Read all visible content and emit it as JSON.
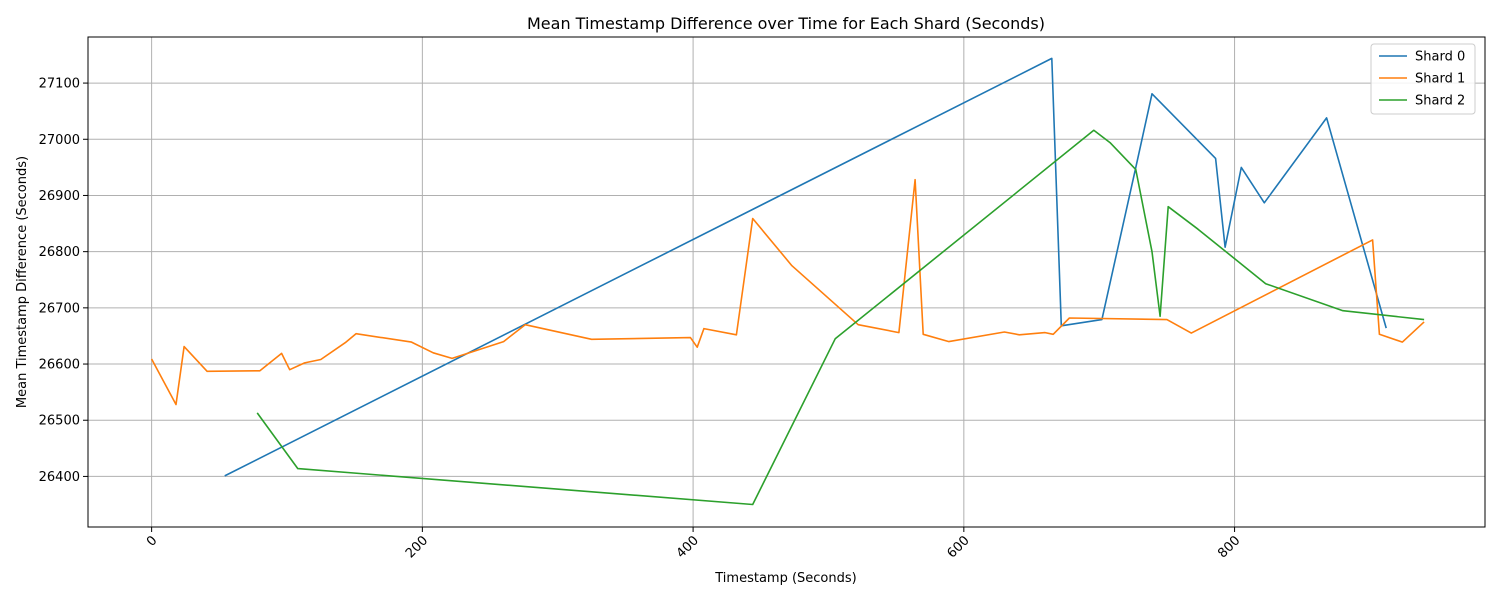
{
  "chart_data": {
    "type": "line",
    "title": "Mean Timestamp Difference over Time for Each Shard (Seconds)",
    "xlabel": "Timestamp (Seconds)",
    "ylabel": "Mean Timestamp Difference (Seconds)",
    "xlim": [
      -47,
      985
    ],
    "ylim": [
      26310,
      27182
    ],
    "xticks": [
      0,
      200,
      400,
      600,
      800
    ],
    "yticks": [
      26400,
      26500,
      26600,
      26700,
      26800,
      26900,
      27000,
      27100
    ],
    "grid": true,
    "legend_position": "top-right",
    "series": [
      {
        "name": "Shard 0",
        "color": "#1f77b4",
        "points": [
          [
            54,
            26401
          ],
          [
            665,
            27144
          ],
          [
            672,
            26668
          ],
          [
            702,
            26679
          ],
          [
            727,
            26950
          ],
          [
            739,
            27081
          ],
          [
            786,
            26966
          ],
          [
            793,
            26808
          ],
          [
            805,
            26950
          ],
          [
            822,
            26887
          ],
          [
            868,
            27038
          ],
          [
            912,
            26664
          ]
        ]
      },
      {
        "name": "Shard 1",
        "color": "#ff7f0e",
        "points": [
          [
            0,
            26609
          ],
          [
            18,
            26528
          ],
          [
            24,
            26631
          ],
          [
            41,
            26587
          ],
          [
            80,
            26588
          ],
          [
            96,
            26619
          ],
          [
            102,
            26590
          ],
          [
            113,
            26602
          ],
          [
            125,
            26608
          ],
          [
            143,
            26638
          ],
          [
            151,
            26654
          ],
          [
            192,
            26639
          ],
          [
            208,
            26620
          ],
          [
            222,
            26610
          ],
          [
            260,
            26640
          ],
          [
            276,
            26670
          ],
          [
            325,
            26644
          ],
          [
            398,
            26647
          ],
          [
            403,
            26630
          ],
          [
            408,
            26663
          ],
          [
            432,
            26652
          ],
          [
            444,
            26859
          ],
          [
            473,
            26775
          ],
          [
            522,
            26670
          ],
          [
            552,
            26656
          ],
          [
            564,
            26928
          ],
          [
            570,
            26653
          ],
          [
            589,
            26640
          ],
          [
            630,
            26657
          ],
          [
            641,
            26652
          ],
          [
            660,
            26656
          ],
          [
            666,
            26653
          ],
          [
            678,
            26682
          ],
          [
            750,
            26679
          ],
          [
            768,
            26655
          ],
          [
            902,
            26821
          ],
          [
            907,
            26653
          ],
          [
            924,
            26639
          ],
          [
            940,
            26675
          ]
        ]
      },
      {
        "name": "Shard 2",
        "color": "#2ca02c",
        "points": [
          [
            78,
            26513
          ],
          [
            108,
            26414
          ],
          [
            444,
            26350
          ],
          [
            505,
            26645
          ],
          [
            696,
            27016
          ],
          [
            708,
            26994
          ],
          [
            727,
            26946
          ],
          [
            739,
            26800
          ],
          [
            745,
            26685
          ],
          [
            751,
            26880
          ],
          [
            773,
            26840
          ],
          [
            823,
            26743
          ],
          [
            880,
            26695
          ],
          [
            940,
            26679
          ]
        ]
      }
    ]
  }
}
